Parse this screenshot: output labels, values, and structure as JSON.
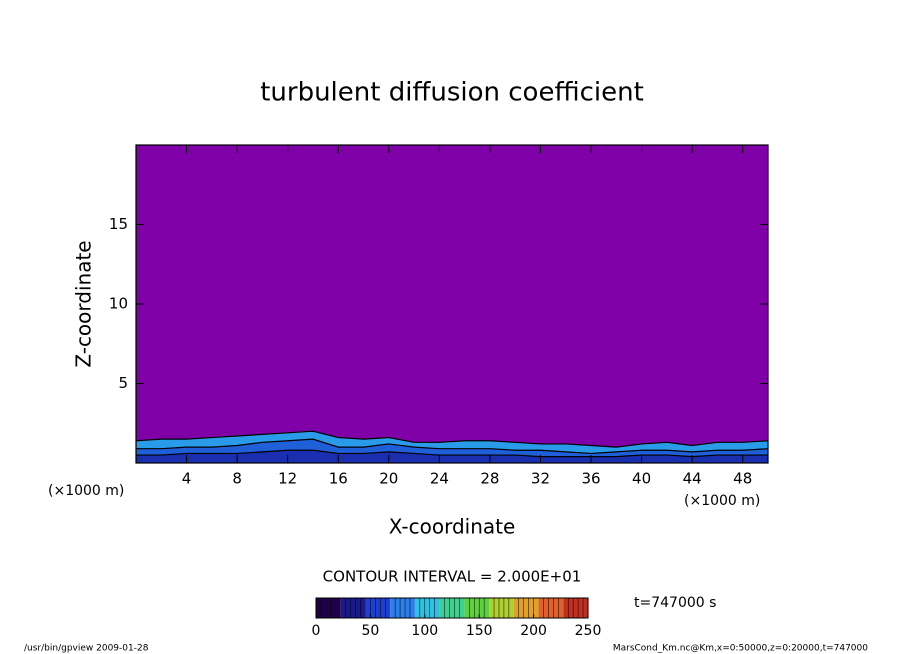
{
  "chart_data": {
    "type": "contour",
    "title": "turbulent diffusion coefficient",
    "x_label": "X-coordinate",
    "y_label": "Z-coordinate",
    "x_unit_labels": [
      "(×1000 m)",
      "(×1000 m)"
    ],
    "xlim": [
      0,
      50
    ],
    "ylim": [
      0,
      20
    ],
    "xticks": [
      4,
      8,
      12,
      16,
      20,
      24,
      28,
      32,
      36,
      40,
      44,
      48
    ],
    "yticks": [
      5,
      10,
      15
    ],
    "background_color": "#8000a8",
    "x": [
      0,
      2,
      4,
      6,
      8,
      10,
      12,
      14,
      16,
      18,
      20,
      22,
      24,
      26,
      28,
      30,
      32,
      34,
      36,
      38,
      40,
      42,
      44,
      46,
      48,
      50
    ],
    "series": [
      {
        "color": "#2a9be8",
        "values": [
          1.4,
          1.5,
          1.5,
          1.6,
          1.7,
          1.8,
          1.9,
          2.0,
          1.6,
          1.5,
          1.6,
          1.3,
          1.3,
          1.4,
          1.4,
          1.3,
          1.2,
          1.2,
          1.1,
          1.0,
          1.2,
          1.3,
          1.1,
          1.3,
          1.3,
          1.4
        ]
      },
      {
        "color": "#1f5fd8",
        "values": [
          0.9,
          0.9,
          1.0,
          1.0,
          1.1,
          1.3,
          1.4,
          1.5,
          1.0,
          1.0,
          1.2,
          1.0,
          0.9,
          0.9,
          0.9,
          0.8,
          0.8,
          0.7,
          0.6,
          0.7,
          0.8,
          0.8,
          0.7,
          0.8,
          0.8,
          0.9
        ]
      },
      {
        "color": "#1a2fb0",
        "values": [
          0.5,
          0.5,
          0.6,
          0.6,
          0.6,
          0.7,
          0.8,
          0.8,
          0.6,
          0.6,
          0.7,
          0.6,
          0.5,
          0.5,
          0.5,
          0.5,
          0.4,
          0.4,
          0.4,
          0.4,
          0.5,
          0.5,
          0.4,
          0.5,
          0.5,
          0.5
        ]
      }
    ],
    "contour_interval": "CONTOUR INTERVAL = 2.000E+01",
    "time_label": "t=747000 s",
    "colorbar": {
      "clim": [
        0,
        250
      ],
      "ticks": [
        0,
        50,
        100,
        150,
        200,
        250
      ],
      "colors": [
        "#20004a",
        "#1a1a8c",
        "#1f3fd0",
        "#2a7fe8",
        "#30c0e0",
        "#40d090",
        "#60d040",
        "#b0d030",
        "#e0a030",
        "#e06030",
        "#c03020"
      ]
    },
    "footer_left": "/usr/bin/gpview  2009-01-28",
    "footer_right": "MarsCond_Km.nc@Km,x=0:50000,z=0:20000,t=747000"
  }
}
